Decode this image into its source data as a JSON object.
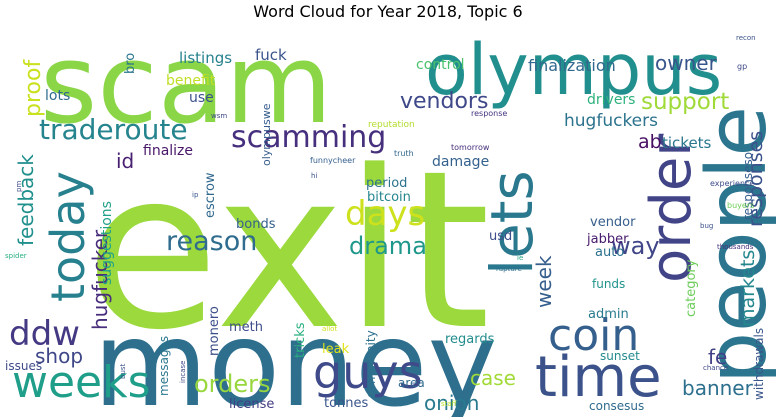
{
  "chart_data": {
    "type": "wordcloud",
    "title": "Word Cloud for Year 2018, Topic 6",
    "words": [
      {
        "text": "exit",
        "color": "#9bd93c"
      },
      {
        "text": "money",
        "color": "#2e6f8e"
      },
      {
        "text": "scam",
        "color": "#8bd646"
      },
      {
        "text": "olympus",
        "color": "#218f8d"
      },
      {
        "text": "people",
        "color": "#2b758e"
      },
      {
        "text": "time",
        "color": "#3b528b"
      },
      {
        "text": "lets",
        "color": "#2a788e"
      },
      {
        "text": "order",
        "color": "#414487"
      },
      {
        "text": "weeks",
        "color": "#1f9e89"
      },
      {
        "text": "guys",
        "color": "#3e4a89"
      },
      {
        "text": "today",
        "color": "#27808e"
      },
      {
        "text": "coin",
        "color": "#355f8d"
      },
      {
        "text": "days",
        "color": "#cde11d"
      },
      {
        "text": "ddw",
        "color": "#443983"
      },
      {
        "text": "scamming",
        "color": "#46307e"
      },
      {
        "text": "traderoute",
        "color": "#25848e"
      },
      {
        "text": "reason",
        "color": "#2f6c8e"
      },
      {
        "text": "support",
        "color": "#a0da39"
      },
      {
        "text": "orders",
        "color": "#98d83e"
      },
      {
        "text": "drama",
        "color": "#1f978b"
      },
      {
        "text": "proof",
        "color": "#cae11f"
      },
      {
        "text": "vendors",
        "color": "#3f4889"
      },
      {
        "text": "owner",
        "color": "#39568c"
      },
      {
        "text": "way",
        "color": "#404688"
      },
      {
        "text": "feedback",
        "color": "#21908d"
      },
      {
        "text": "hugfucker",
        "color": "#472d7b"
      },
      {
        "text": "markets",
        "color": "#24878e"
      },
      {
        "text": "responses",
        "color": "#3b518b"
      },
      {
        "text": "case",
        "color": "#a2da37"
      },
      {
        "text": "fe",
        "color": "#424086"
      },
      {
        "text": "shop",
        "color": "#3f4788"
      },
      {
        "text": "onion",
        "color": "#297a8e"
      },
      {
        "text": "banner",
        "color": "#2d708e"
      },
      {
        "text": "week",
        "color": "#355e8d"
      },
      {
        "text": "ab",
        "color": "#471063"
      },
      {
        "text": "id",
        "color": "#482071"
      },
      {
        "text": "hugfuckers",
        "color": "#2c738e"
      },
      {
        "text": "finalization",
        "color": "#31688e"
      },
      {
        "text": "tickets",
        "color": "#2a778e"
      },
      {
        "text": "drivers",
        "color": "#2db27d"
      },
      {
        "text": "listings",
        "color": "#26828e"
      },
      {
        "text": "fuck",
        "color": "#3a548c"
      },
      {
        "text": "lots",
        "color": "#2f6b8e"
      },
      {
        "text": "benefit",
        "color": "#c0df25"
      },
      {
        "text": "use",
        "color": "#3b518b"
      },
      {
        "text": "control",
        "color": "#4ac16d"
      },
      {
        "text": "bro",
        "color": "#2a768e"
      },
      {
        "text": "finalize",
        "color": "#481769"
      },
      {
        "text": "damage",
        "color": "#34618d"
      },
      {
        "text": "period",
        "color": "#2c738e"
      },
      {
        "text": "bitcoin",
        "color": "#25858e"
      },
      {
        "text": "escrow",
        "color": "#31688e"
      },
      {
        "text": "bonds",
        "color": "#34618d"
      },
      {
        "text": "suggestions",
        "color": "#1fa088"
      },
      {
        "text": "usd",
        "color": "#3d4e8a"
      },
      {
        "text": "vendor",
        "color": "#355f8d"
      },
      {
        "text": "jabber",
        "color": "#481b6d"
      },
      {
        "text": "auto",
        "color": "#2c728e"
      },
      {
        "text": "funds",
        "color": "#1f948c"
      },
      {
        "text": "category",
        "color": "#6ccd5a"
      },
      {
        "text": "responseso",
        "color": "#365c8d"
      },
      {
        "text": "withdrawals",
        "color": "#39568c"
      },
      {
        "text": "admin",
        "color": "#297b8e"
      },
      {
        "text": "meth",
        "color": "#3d4d8a"
      },
      {
        "text": "tricks",
        "color": "#2ab07f"
      },
      {
        "text": "messages",
        "color": "#2a778e"
      },
      {
        "text": "monero",
        "color": "#3c4f8a"
      },
      {
        "text": "community",
        "color": "#2d718e"
      },
      {
        "text": "leak",
        "color": "#dde318"
      },
      {
        "text": "regards",
        "color": "#228c8d"
      },
      {
        "text": "area",
        "color": "#306a8e"
      },
      {
        "text": "sunset",
        "color": "#238a8d"
      },
      {
        "text": "issues",
        "color": "#3e4a89"
      },
      {
        "text": "license",
        "color": "#433e85"
      },
      {
        "text": "tonnes",
        "color": "#3a548c"
      },
      {
        "text": "consesus",
        "color": "#2f6b8e"
      },
      {
        "text": "olympuswe",
        "color": "#365d8d"
      },
      {
        "text": "reputation",
        "color": "#b2dd2d"
      },
      {
        "text": "funnycheer",
        "color": "#355f8d"
      },
      {
        "text": "truth",
        "color": "#31688e"
      },
      {
        "text": "tomorrow",
        "color": "#472f7d"
      },
      {
        "text": "response",
        "color": "#46337f"
      },
      {
        "text": "gp",
        "color": "#3f4889"
      },
      {
        "text": "recon",
        "color": "#3b528b"
      },
      {
        "text": "experience",
        "color": "#3d4e8a"
      },
      {
        "text": "buyers",
        "color": "#6ece58"
      },
      {
        "text": "wsm",
        "color": "#3e4989"
      },
      {
        "text": "pm",
        "color": "#3e4c8a"
      },
      {
        "text": "hi",
        "color": "#3b528b"
      },
      {
        "text": "ip",
        "color": "#39568c"
      },
      {
        "text": "bug",
        "color": "#3b528b"
      },
      {
        "text": "thousands",
        "color": "#46327e"
      },
      {
        "text": "ie",
        "color": "#22a785"
      },
      {
        "text": "rapture",
        "color": "#2d708e"
      },
      {
        "text": "spider",
        "color": "#29af7f"
      },
      {
        "text": "allot",
        "color": "#d0e11c"
      },
      {
        "text": "chance",
        "color": "#3e4a89"
      },
      {
        "text": "bust",
        "color": "#3b528b"
      },
      {
        "text": "incase",
        "color": "#3e4c8a"
      },
      {
        "text": "staff",
        "color": "#b8de29"
      }
    ]
  }
}
